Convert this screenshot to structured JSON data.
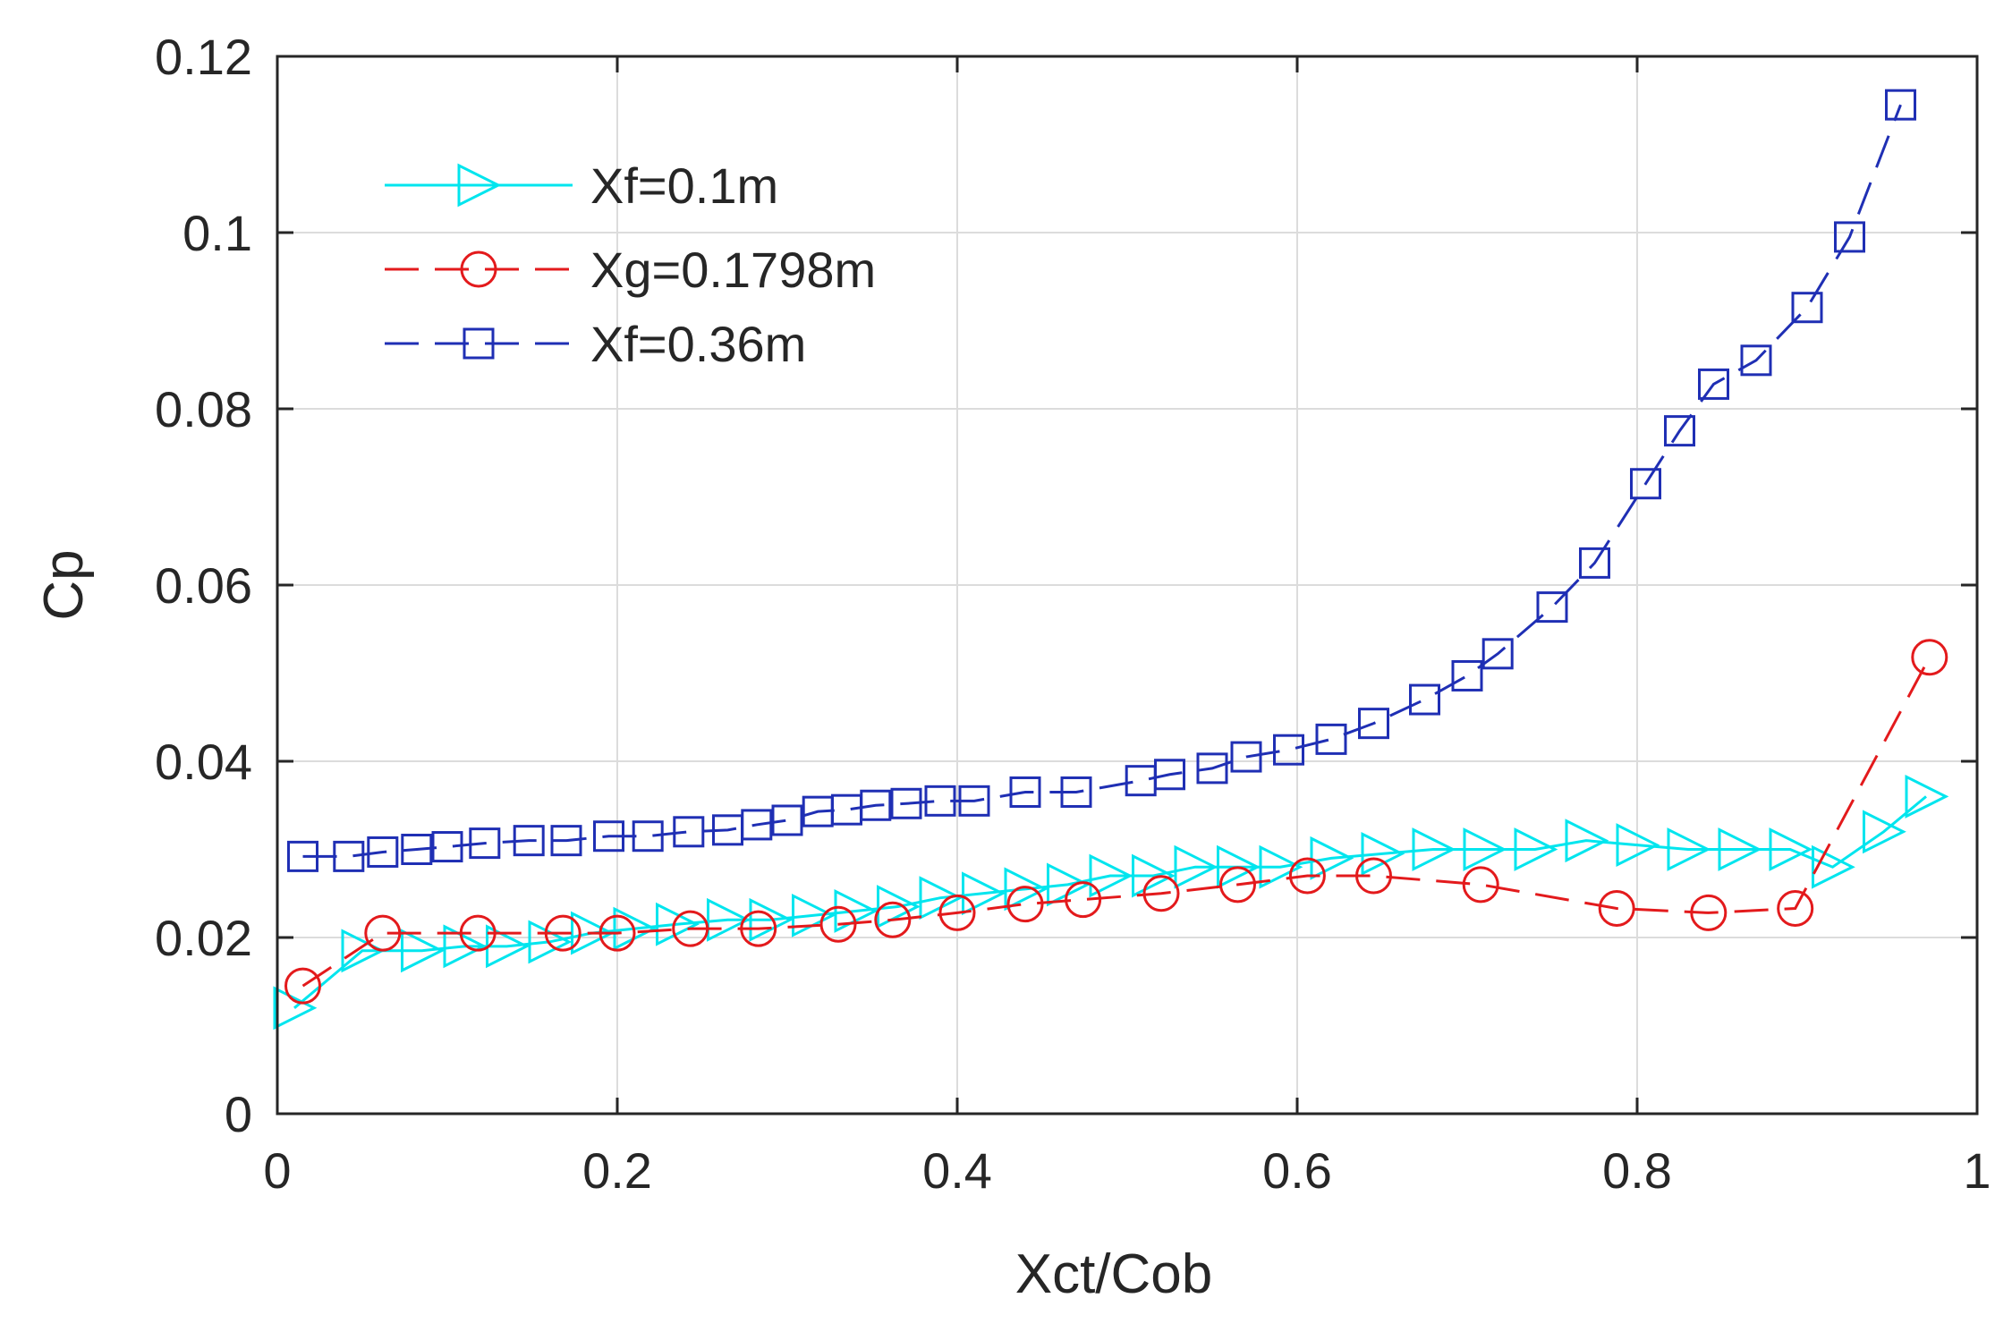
{
  "chart_data": {
    "type": "line",
    "title": "",
    "xlabel": "Xct/Cob",
    "ylabel": "Cp",
    "xlim": [
      0,
      1
    ],
    "ylim": [
      0,
      0.12
    ],
    "xticks": [
      0,
      0.2,
      0.4,
      0.6,
      0.8,
      1
    ],
    "xtick_labels": [
      "0",
      "0.2",
      "0.4",
      "0.6",
      "0.8",
      "1"
    ],
    "yticks": [
      0,
      0.02,
      0.04,
      0.06,
      0.08,
      0.1,
      0.12
    ],
    "ytick_labels": [
      "0",
      "0.02",
      "0.04",
      "0.06",
      "0.08",
      "0.1",
      "0.12"
    ],
    "grid": true,
    "legend_position": "top-left",
    "series": [
      {
        "name": "Xf=0.1m",
        "color": "#00e5ee",
        "marker": "triangle-right",
        "line": "solid",
        "x": [
          0.01,
          0.05,
          0.085,
          0.11,
          0.135,
          0.16,
          0.185,
          0.21,
          0.235,
          0.265,
          0.29,
          0.315,
          0.34,
          0.365,
          0.39,
          0.415,
          0.44,
          0.465,
          0.49,
          0.515,
          0.54,
          0.565,
          0.59,
          0.62,
          0.65,
          0.68,
          0.71,
          0.74,
          0.77,
          0.8,
          0.83,
          0.86,
          0.89,
          0.915,
          0.945,
          0.97
        ],
        "y": [
          0.012,
          0.0185,
          0.0185,
          0.019,
          0.019,
          0.0195,
          0.0205,
          0.021,
          0.0215,
          0.022,
          0.022,
          0.0225,
          0.023,
          0.0235,
          0.0245,
          0.025,
          0.0255,
          0.026,
          0.027,
          0.027,
          0.028,
          0.028,
          0.028,
          0.029,
          0.0295,
          0.03,
          0.03,
          0.03,
          0.031,
          0.0305,
          0.03,
          0.03,
          0.03,
          0.028,
          0.032,
          0.036
        ]
      },
      {
        "name": "Xg=0.1798m",
        "color": "#e31a1c",
        "marker": "circle",
        "line": "dashed",
        "x": [
          0.015,
          0.062,
          0.118,
          0.168,
          0.2,
          0.243,
          0.283,
          0.33,
          0.362,
          0.4,
          0.44,
          0.474,
          0.52,
          0.565,
          0.606,
          0.645,
          0.708,
          0.788,
          0.842,
          0.893,
          0.972
        ],
        "y": [
          0.0145,
          0.0205,
          0.0205,
          0.0205,
          0.0205,
          0.021,
          0.021,
          0.0215,
          0.022,
          0.0228,
          0.0238,
          0.0243,
          0.025,
          0.026,
          0.027,
          0.027,
          0.026,
          0.0233,
          0.0228,
          0.0233,
          0.0518
        ]
      },
      {
        "name": "Xf=0.36m",
        "color": "#1f2fb4",
        "marker": "square",
        "line": "dashed",
        "x": [
          0.015,
          0.042,
          0.062,
          0.082,
          0.1,
          0.122,
          0.148,
          0.17,
          0.195,
          0.218,
          0.242,
          0.265,
          0.282,
          0.3,
          0.318,
          0.335,
          0.352,
          0.37,
          0.39,
          0.41,
          0.44,
          0.47,
          0.508,
          0.525,
          0.55,
          0.57,
          0.595,
          0.62,
          0.645,
          0.675,
          0.7,
          0.718,
          0.75,
          0.775,
          0.805,
          0.825,
          0.845,
          0.87,
          0.9,
          0.925,
          0.955
        ],
        "y": [
          0.0292,
          0.0292,
          0.0297,
          0.03,
          0.0303,
          0.0307,
          0.031,
          0.031,
          0.0315,
          0.0315,
          0.032,
          0.0322,
          0.0328,
          0.0333,
          0.0343,
          0.0345,
          0.035,
          0.0352,
          0.0355,
          0.0355,
          0.0365,
          0.0365,
          0.0378,
          0.0385,
          0.0392,
          0.0405,
          0.0413,
          0.0425,
          0.0443,
          0.047,
          0.0497,
          0.0522,
          0.0575,
          0.0625,
          0.0715,
          0.0775,
          0.0828,
          0.0855,
          0.0915,
          0.0995,
          0.1145
        ]
      }
    ]
  }
}
